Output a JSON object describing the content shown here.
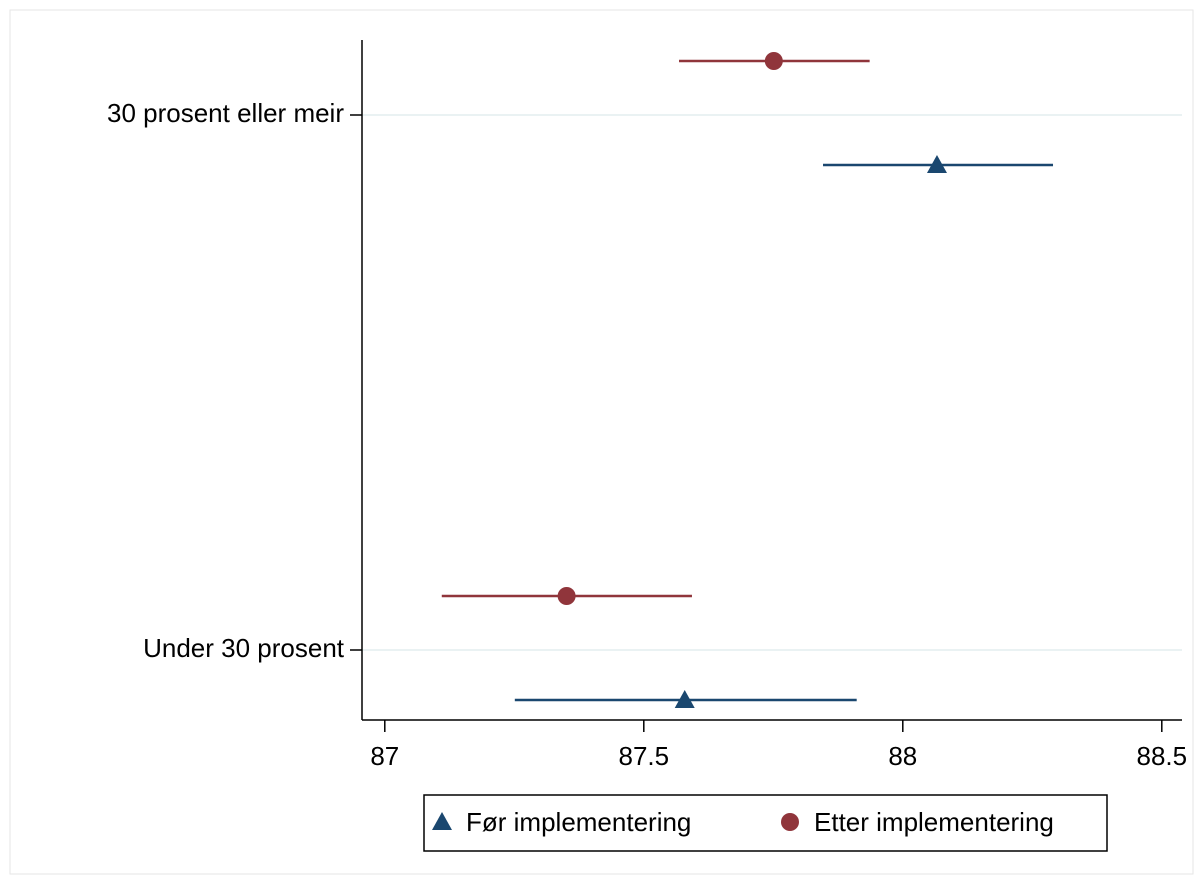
{
  "chart_data": {
    "type": "dot_errorbar",
    "categories": [
      "30 prosent eller meir",
      "Under 30 prosent"
    ],
    "series": [
      {
        "name": "Før implementering",
        "color": "#1a476f",
        "marker": "triangle",
        "values": [
          88.066,
          87.579
        ],
        "lower": [
          87.846,
          87.251
        ],
        "upper": [
          88.29,
          87.911
        ]
      },
      {
        "name": "Etter implementering",
        "color": "#90353b",
        "marker": "circle",
        "values": [
          87.751,
          87.351
        ],
        "lower": [
          87.568,
          87.11
        ],
        "upper": [
          87.936,
          87.593
        ]
      }
    ],
    "xlim": [
      86.956,
      88.539
    ],
    "xticks": [
      87,
      87.5,
      88,
      88.5
    ],
    "grid": true,
    "legend": "bottom"
  }
}
